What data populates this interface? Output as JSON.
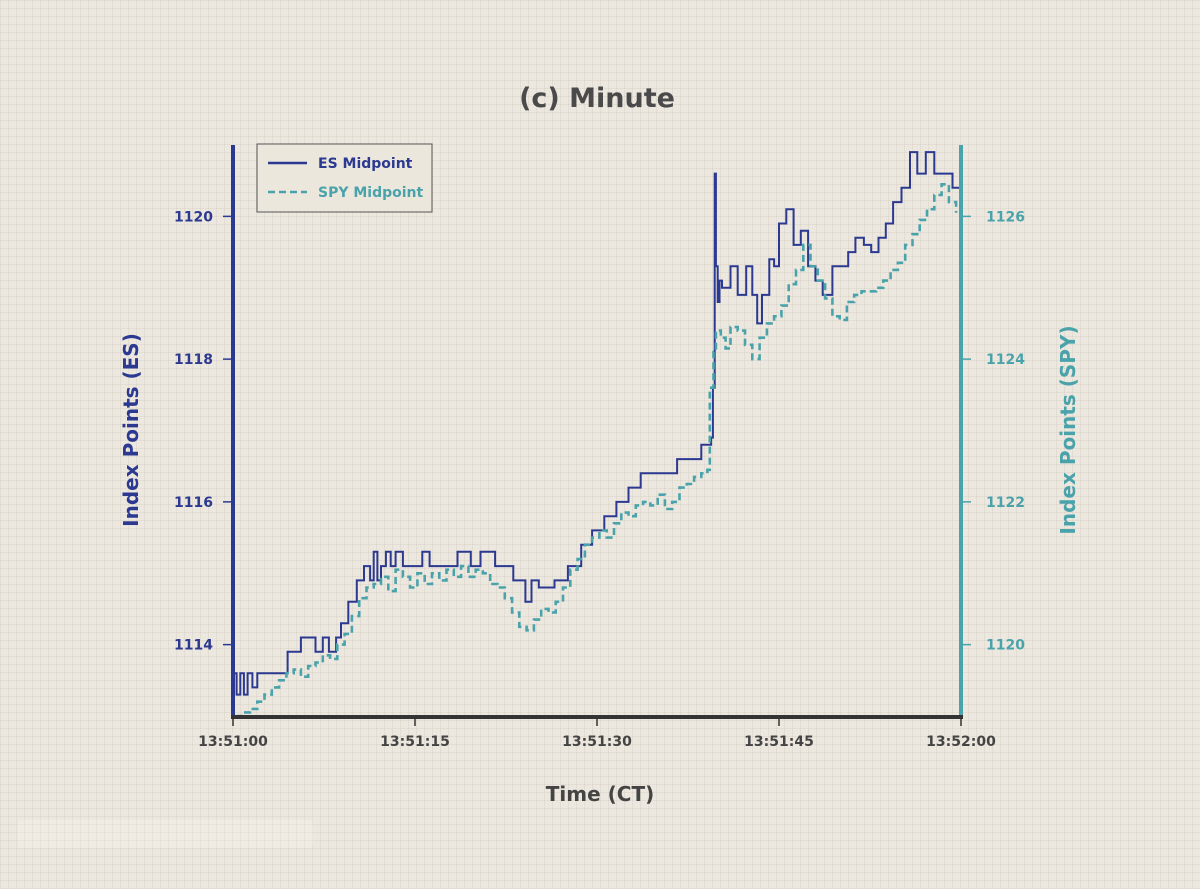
{
  "chart_data": {
    "type": "line",
    "title": "(c) Minute",
    "xlabel": "Time (CT)",
    "ylabel_left": "Index Points (ES)",
    "ylabel_right": "Index Points (SPY)",
    "x_ticks": [
      "13:51:00",
      "13:51:15",
      "13:51:30",
      "13:51:45",
      "13:52:00"
    ],
    "y_left_ticks": [
      "1114",
      "1116",
      "1118",
      "1120"
    ],
    "y_right_ticks": [
      "1120",
      "1122",
      "1124",
      "1126"
    ],
    "x_unit": "seconds after 13:51:00",
    "xlim": [
      0,
      60
    ],
    "ylim_left": [
      1113.0,
      1121.0
    ],
    "ylim_right": [
      1119.0,
      1127.0
    ],
    "grid": false,
    "legend_position": "top-left",
    "colors": {
      "es": "#2b3990",
      "spy": "#4aa3aa",
      "axis_bottom": "#333333",
      "title": "#4a4a4a"
    },
    "series": [
      {
        "name": "ES Midpoint",
        "axis": "left",
        "style": "solid",
        "x": [
          0,
          0.3,
          0.6,
          0.9,
          1.2,
          1.6,
          2.0,
          4.5,
          5.6,
          6.8,
          7.4,
          7.9,
          8.5,
          8.9,
          9.5,
          10.2,
          10.8,
          11.3,
          11.6,
          11.9,
          12.2,
          12.6,
          13.0,
          13.4,
          14.0,
          15.6,
          16.2,
          18.5,
          19.6,
          20.4,
          21.6,
          23.1,
          24.1,
          24.6,
          25.2,
          26.5,
          27.6,
          28.7,
          29.6,
          30.6,
          31.6,
          32.6,
          33.6,
          34.6,
          35.6,
          36.6,
          37.6,
          38.6,
          39.4,
          39.55,
          39.7,
          39.8,
          39.95,
          40.1,
          40.3,
          41.0,
          41.6,
          42.3,
          42.8,
          43.2,
          43.6,
          44.2,
          44.6,
          45.0,
          45.6,
          46.2,
          46.8,
          47.4,
          48.0,
          48.6,
          49.4,
          50.1,
          50.7,
          51.3,
          52.0,
          52.6,
          53.2,
          53.8,
          54.4,
          55.1,
          55.8,
          56.4,
          57.1,
          57.8,
          58.5,
          59.3,
          60.0
        ],
        "y": [
          1113.6,
          1113.3,
          1113.6,
          1113.3,
          1113.6,
          1113.4,
          1113.6,
          1113.9,
          1114.1,
          1113.9,
          1114.1,
          1113.9,
          1114.1,
          1114.3,
          1114.6,
          1114.9,
          1115.1,
          1114.9,
          1115.3,
          1114.9,
          1115.1,
          1115.3,
          1115.1,
          1115.3,
          1115.1,
          1115.3,
          1115.1,
          1115.3,
          1115.1,
          1115.3,
          1115.1,
          1114.9,
          1114.6,
          1114.9,
          1114.8,
          1114.9,
          1115.1,
          1115.4,
          1115.6,
          1115.8,
          1116.0,
          1116.2,
          1116.4,
          1116.4,
          1116.4,
          1116.6,
          1116.6,
          1116.8,
          1116.9,
          1117.6,
          1120.6,
          1119.3,
          1118.8,
          1119.1,
          1119.0,
          1119.3,
          1118.9,
          1119.3,
          1118.9,
          1118.5,
          1118.9,
          1119.4,
          1119.3,
          1119.9,
          1120.1,
          1119.6,
          1119.8,
          1119.3,
          1119.1,
          1118.9,
          1119.3,
          1119.3,
          1119.5,
          1119.7,
          1119.6,
          1119.5,
          1119.7,
          1119.9,
          1120.2,
          1120.4,
          1120.9,
          1120.6,
          1120.9,
          1120.6,
          1120.6,
          1120.4,
          1120.4
        ]
      },
      {
        "name": "SPY Midpoint",
        "axis": "right",
        "style": "dashed",
        "x": [
          0.3,
          0.8,
          1.4,
          2.0,
          2.6,
          3.2,
          3.8,
          4.4,
          5.0,
          5.6,
          6.2,
          6.8,
          7.4,
          8.0,
          8.6,
          9.2,
          9.8,
          10.4,
          11.0,
          11.6,
          12.2,
          12.8,
          13.4,
          14.0,
          14.6,
          15.2,
          15.8,
          16.4,
          17.0,
          17.6,
          18.2,
          18.8,
          19.4,
          20.0,
          20.6,
          21.2,
          21.8,
          22.4,
          23.0,
          23.6,
          24.2,
          24.8,
          25.4,
          26.0,
          26.6,
          27.2,
          27.8,
          28.4,
          29.0,
          29.6,
          30.2,
          30.8,
          31.4,
          32.0,
          32.6,
          33.2,
          33.8,
          34.4,
          35.0,
          35.6,
          36.2,
          36.8,
          37.4,
          38.0,
          38.6,
          39.1,
          39.3,
          39.6,
          39.8,
          40.2,
          40.6,
          41.0,
          41.6,
          42.2,
          42.8,
          43.4,
          44.0,
          44.6,
          45.2,
          45.8,
          46.4,
          47.0,
          47.6,
          48.2,
          48.8,
          49.4,
          50.0,
          50.6,
          51.2,
          51.8,
          52.4,
          53.0,
          53.6,
          54.2,
          54.8,
          55.4,
          56.0,
          56.6,
          57.2,
          57.8,
          58.4,
          59.0,
          59.6
        ],
        "y": [
          1119.0,
          1119.05,
          1119.1,
          1119.2,
          1119.3,
          1119.4,
          1119.5,
          1119.6,
          1119.65,
          1119.55,
          1119.7,
          1119.75,
          1119.85,
          1119.8,
          1120.0,
          1120.15,
          1120.4,
          1120.65,
          1120.8,
          1120.85,
          1120.95,
          1120.75,
          1121.05,
          1120.95,
          1120.8,
          1121.0,
          1120.85,
          1121.0,
          1120.9,
          1121.05,
          1120.95,
          1121.1,
          1120.95,
          1121.05,
          1121.0,
          1120.85,
          1120.8,
          1120.65,
          1120.45,
          1120.25,
          1120.2,
          1120.35,
          1120.5,
          1120.45,
          1120.6,
          1120.8,
          1121.05,
          1121.2,
          1121.4,
          1121.5,
          1121.6,
          1121.5,
          1121.7,
          1121.85,
          1121.8,
          1121.95,
          1122.0,
          1121.95,
          1122.1,
          1121.9,
          1122.0,
          1122.2,
          1122.25,
          1122.35,
          1122.4,
          1122.45,
          1123.6,
          1124.1,
          1124.4,
          1124.3,
          1124.15,
          1124.45,
          1124.4,
          1124.2,
          1124.0,
          1124.3,
          1124.5,
          1124.6,
          1124.75,
          1125.05,
          1125.25,
          1125.6,
          1125.3,
          1125.1,
          1124.85,
          1124.6,
          1124.55,
          1124.8,
          1124.9,
          1124.95,
          1124.95,
          1125.0,
          1125.1,
          1125.25,
          1125.35,
          1125.6,
          1125.75,
          1125.95,
          1126.1,
          1126.3,
          1126.45,
          1126.2,
          1126.05
        ]
      }
    ]
  }
}
